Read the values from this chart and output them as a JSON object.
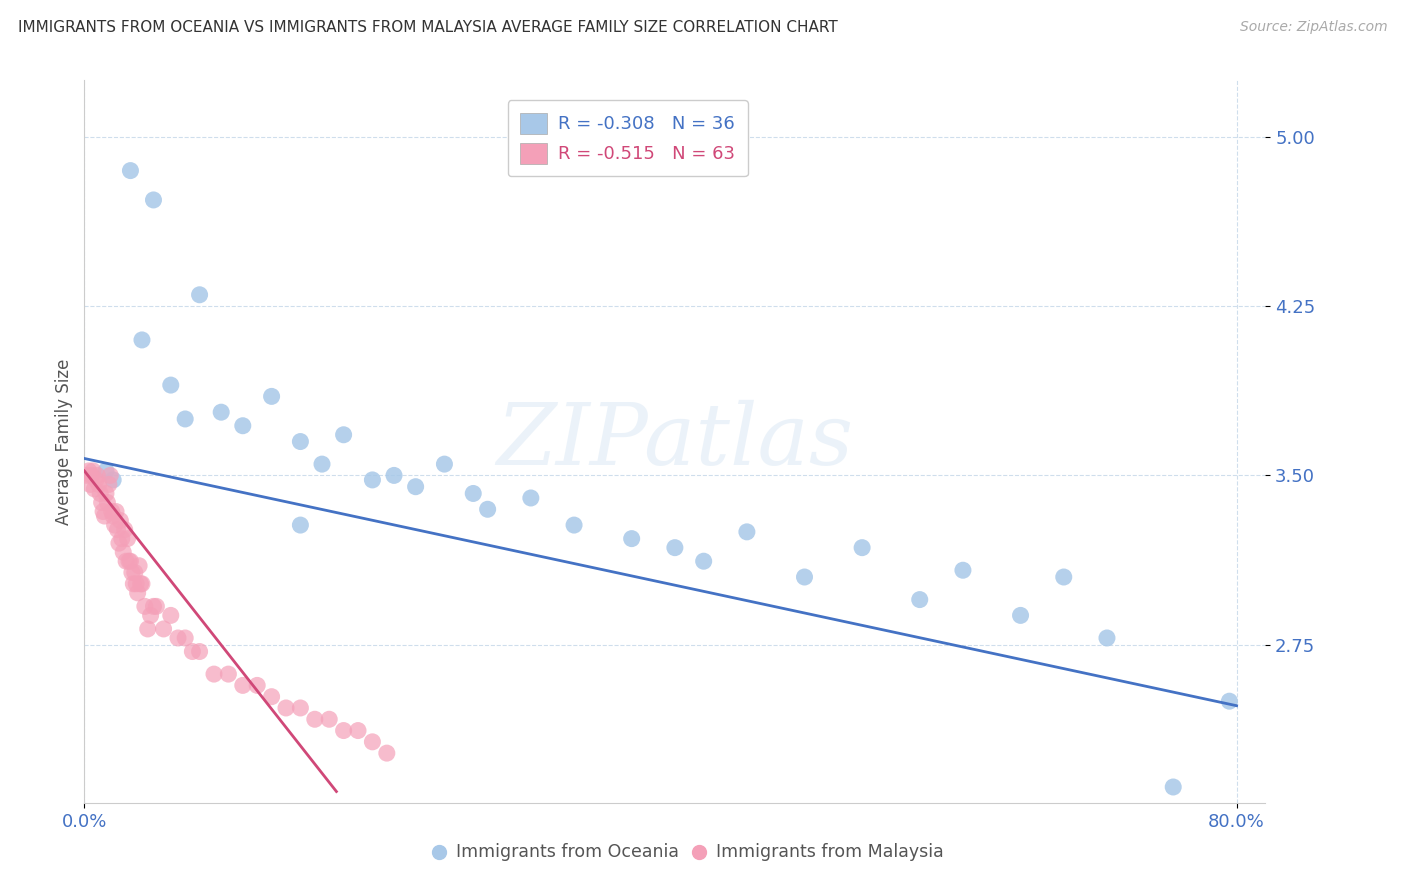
{
  "title": "IMMIGRANTS FROM OCEANIA VS IMMIGRANTS FROM MALAYSIA AVERAGE FAMILY SIZE CORRELATION CHART",
  "source": "Source: ZipAtlas.com",
  "ylabel": "Average Family Size",
  "ytick_vals": [
    2.75,
    3.5,
    4.25,
    5.0
  ],
  "ytick_labels": [
    "2.75",
    "3.50",
    "4.25",
    "5.00"
  ],
  "xtick_vals": [
    0.0,
    0.8
  ],
  "xtick_labels": [
    "0.0%",
    "80.0%"
  ],
  "xlim": [
    0.0,
    0.82
  ],
  "ylim": [
    2.05,
    5.25
  ],
  "R_oceania": -0.308,
  "N_oceania": 36,
  "R_malaysia": -0.515,
  "N_malaysia": 63,
  "color_oceania": "#a8c8e8",
  "color_malaysia": "#f4a0b8",
  "line_color_oceania": "#4472c4",
  "line_color_malaysia": "#d04878",
  "title_color": "#333333",
  "axis_tick_color": "#4472c4",
  "watermark": "ZIPatlas",
  "legend_label_oceania": "Immigrants from Oceania",
  "legend_label_malaysia": "Immigrants from Malaysia",
  "oceania_line_x0": 0.0,
  "oceania_line_y0": 3.575,
  "oceania_line_x1": 0.8,
  "oceania_line_y1": 2.48,
  "malaysia_line_x0": 0.0,
  "malaysia_line_y0": 3.52,
  "malaysia_line_x1": 0.175,
  "malaysia_line_y1": 2.1,
  "oceania_x": [
    0.015,
    0.032,
    0.048,
    0.02,
    0.04,
    0.06,
    0.07,
    0.08,
    0.095,
    0.11,
    0.13,
    0.15,
    0.165,
    0.18,
    0.2,
    0.215,
    0.23,
    0.25,
    0.27,
    0.15,
    0.28,
    0.31,
    0.34,
    0.38,
    0.41,
    0.43,
    0.46,
    0.5,
    0.54,
    0.58,
    0.61,
    0.65,
    0.68,
    0.71,
    0.756,
    0.795
  ],
  "oceania_y": [
    3.52,
    4.85,
    4.72,
    3.48,
    4.1,
    3.9,
    3.75,
    4.3,
    3.78,
    3.72,
    3.85,
    3.65,
    3.55,
    3.68,
    3.48,
    3.5,
    3.45,
    3.55,
    3.42,
    3.28,
    3.35,
    3.4,
    3.28,
    3.22,
    3.18,
    3.12,
    3.25,
    3.05,
    3.18,
    2.95,
    3.08,
    2.88,
    3.05,
    2.78,
    2.12,
    2.5
  ],
  "malaysia_x": [
    0.002,
    0.003,
    0.004,
    0.005,
    0.006,
    0.007,
    0.008,
    0.009,
    0.01,
    0.011,
    0.012,
    0.013,
    0.014,
    0.015,
    0.016,
    0.017,
    0.018,
    0.019,
    0.02,
    0.021,
    0.022,
    0.023,
    0.024,
    0.025,
    0.026,
    0.027,
    0.028,
    0.029,
    0.03,
    0.031,
    0.032,
    0.033,
    0.034,
    0.035,
    0.036,
    0.037,
    0.038,
    0.039,
    0.04,
    0.042,
    0.044,
    0.046,
    0.048,
    0.05,
    0.055,
    0.06,
    0.065,
    0.07,
    0.075,
    0.08,
    0.09,
    0.1,
    0.11,
    0.12,
    0.13,
    0.14,
    0.15,
    0.16,
    0.17,
    0.18,
    0.19,
    0.2,
    0.21
  ],
  "malaysia_y": [
    3.5,
    3.52,
    3.46,
    3.5,
    3.52,
    3.44,
    3.48,
    3.5,
    3.46,
    3.42,
    3.38,
    3.34,
    3.32,
    3.42,
    3.38,
    3.46,
    3.5,
    3.34,
    3.32,
    3.28,
    3.34,
    3.26,
    3.2,
    3.3,
    3.22,
    3.16,
    3.26,
    3.12,
    3.22,
    3.12,
    3.12,
    3.07,
    3.02,
    3.07,
    3.02,
    2.98,
    3.1,
    3.02,
    3.02,
    2.92,
    2.82,
    2.88,
    2.92,
    2.92,
    2.82,
    2.88,
    2.78,
    2.78,
    2.72,
    2.72,
    2.62,
    2.62,
    2.57,
    2.57,
    2.52,
    2.47,
    2.47,
    2.42,
    2.42,
    2.37,
    2.37,
    2.32,
    2.27
  ]
}
